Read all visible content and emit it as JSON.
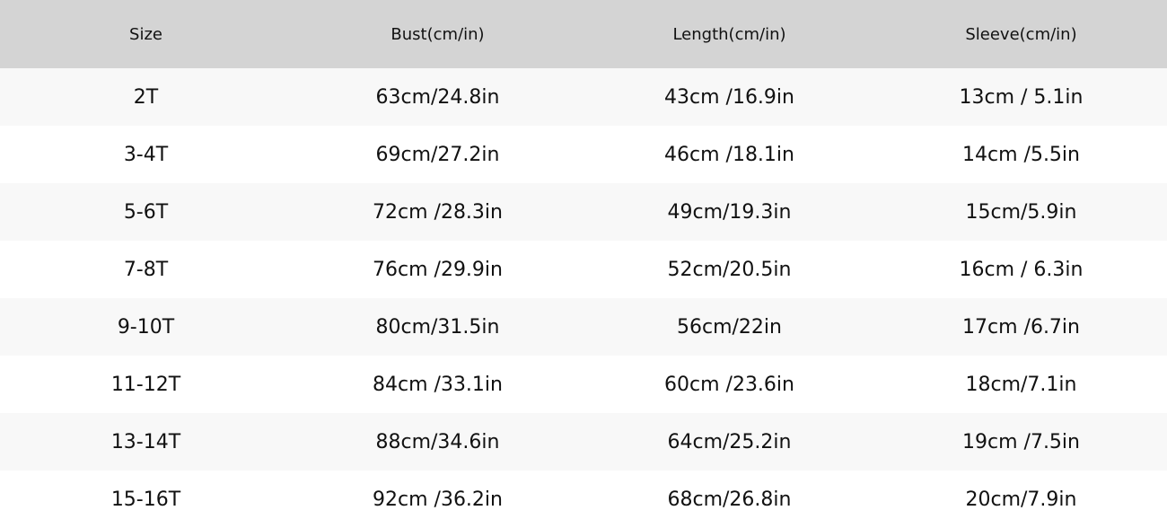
{
  "table": {
    "headers": [
      "Size",
      "Bust(cm/in)",
      "Length(cm/in)",
      "Sleeve(cm/in)"
    ],
    "rows": [
      [
        "2T",
        "63cm/24.8in",
        "43cm /16.9in",
        "13cm / 5.1in"
      ],
      [
        "3-4T",
        "69cm/27.2in",
        "46cm /18.1in",
        "14cm /5.5in"
      ],
      [
        "5-6T",
        "72cm /28.3in",
        "49cm/19.3in",
        "15cm/5.9in"
      ],
      [
        "7-8T",
        "76cm /29.9in",
        "52cm/20.5in",
        "16cm / 6.3in"
      ],
      [
        "9-10T",
        "80cm/31.5in",
        "56cm/22in",
        "17cm /6.7in"
      ],
      [
        "11-12T",
        "84cm /33.1in",
        "60cm /23.6in",
        "18cm/7.1in"
      ],
      [
        "13-14T",
        "88cm/34.6in",
        "64cm/25.2in",
        "19cm /7.5in"
      ],
      [
        "15-16T",
        "92cm /36.2in",
        "68cm/26.8in",
        "20cm/7.9in"
      ]
    ]
  },
  "colors": {
    "header_bg": "#d4d4d4",
    "row_alt_bg": "#f8f8f8",
    "row_bg": "#ffffff"
  }
}
